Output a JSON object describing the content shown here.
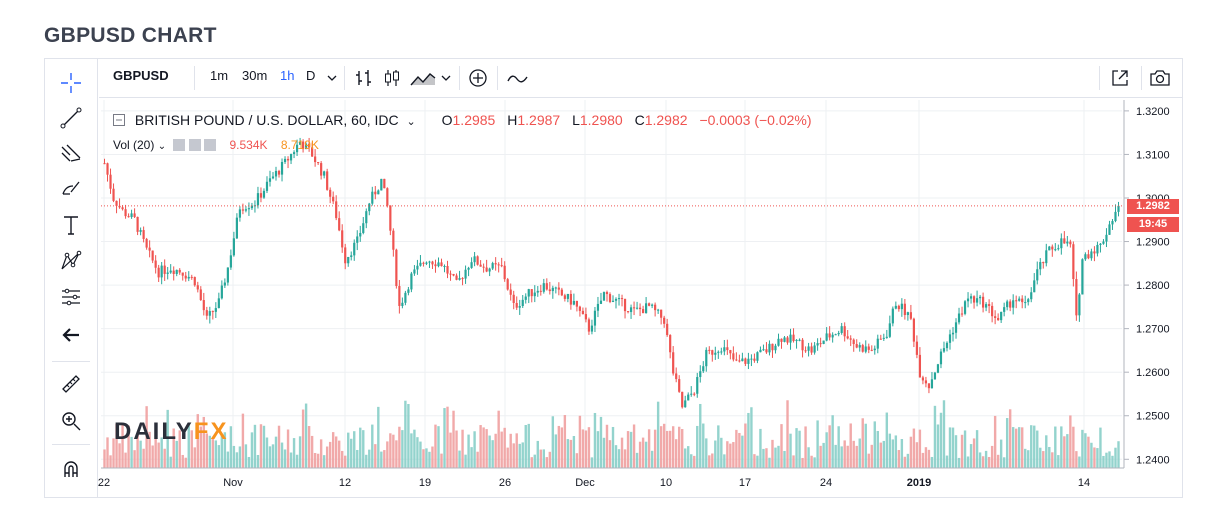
{
  "page_title": "GBPUSD CHART",
  "toolbar": {
    "symbol": "GBPUSD",
    "intervals": [
      "1m",
      "30m",
      "1h",
      "D"
    ],
    "active_interval": "1h",
    "icons": [
      "bars-icon",
      "candles-icon",
      "area-icon",
      "add-indicator-icon",
      "compare-icon",
      "popout-icon",
      "snapshot-icon"
    ]
  },
  "legend": {
    "instrument": "BRITISH POUND / U.S. DOLLAR, 60, IDC",
    "o_label": "O",
    "o_value": "1.2985",
    "h_label": "H",
    "h_value": "1.2987",
    "l_label": "L",
    "l_value": "1.2980",
    "c_label": "C",
    "c_value": "1.2982",
    "change": "−0.0003 (−0.02%)"
  },
  "volume_legend": {
    "label": "Vol (20)",
    "value1": "9.534K",
    "value2": "8.719K"
  },
  "price_tag": {
    "price": "1.2982",
    "countdown": "19:45"
  },
  "logo": {
    "part1": "DAILY",
    "part2": "FX"
  },
  "colors": {
    "up": "#26a69a",
    "down": "#ef5350",
    "vol_up": "#80cbc4",
    "vol_down": "#ef9a9a",
    "grid": "#eef0f3",
    "accent": "#2962ff"
  },
  "chart_data": {
    "type": "candlestick",
    "ylim": [
      1.238,
      1.3225
    ],
    "y_ticks": [
      "1.3200",
      "1.3100",
      "1.3000",
      "1.2900",
      "1.2800",
      "1.2700",
      "1.2600",
      "1.2500",
      "1.2400"
    ],
    "x_ticks": [
      "22",
      "Nov",
      "12",
      "19",
      "26",
      "Dec",
      "10",
      "17",
      "24",
      "2019",
      "14"
    ],
    "last_price": 1.2982,
    "price_path": [
      [
        0,
        1.308
      ],
      [
        3,
        1.3
      ],
      [
        6,
        1.297
      ],
      [
        10,
        1.295
      ],
      [
        14,
        1.288
      ],
      [
        18,
        1.283
      ],
      [
        22,
        1.284
      ],
      [
        26,
        1.283
      ],
      [
        30,
        1.281
      ],
      [
        34,
        1.272
      ],
      [
        38,
        1.276
      ],
      [
        41,
        1.284
      ],
      [
        45,
        1.298
      ],
      [
        50,
        1.299
      ],
      [
        55,
        1.304
      ],
      [
        60,
        1.308
      ],
      [
        65,
        1.313
      ],
      [
        69,
        1.31
      ],
      [
        73,
        1.305
      ],
      [
        77,
        1.296
      ],
      [
        80,
        1.286
      ],
      [
        84,
        1.29
      ],
      [
        88,
        1.299
      ],
      [
        92,
        1.304
      ],
      [
        94,
        1.298
      ],
      [
        96,
        1.287
      ],
      [
        98,
        1.275
      ],
      [
        102,
        1.282
      ],
      [
        107,
        1.286
      ],
      [
        112,
        1.285
      ],
      [
        117,
        1.28
      ],
      [
        122,
        1.286
      ],
      [
        127,
        1.284
      ],
      [
        132,
        1.284
      ],
      [
        136,
        1.275
      ],
      [
        141,
        1.278
      ],
      [
        146,
        1.28
      ],
      [
        151,
        1.278
      ],
      [
        156,
        1.276
      ],
      [
        161,
        1.27
      ],
      [
        166,
        1.278
      ],
      [
        171,
        1.276
      ],
      [
        176,
        1.274
      ],
      [
        181,
        1.275
      ],
      [
        186,
        1.272
      ],
      [
        189,
        1.26
      ],
      [
        192,
        1.252
      ],
      [
        196,
        1.256
      ],
      [
        200,
        1.264
      ],
      [
        205,
        1.266
      ],
      [
        210,
        1.262
      ],
      [
        215,
        1.263
      ],
      [
        220,
        1.265
      ],
      [
        225,
        1.268
      ],
      [
        230,
        1.267
      ],
      [
        235,
        1.265
      ],
      [
        240,
        1.268
      ],
      [
        245,
        1.27
      ],
      [
        250,
        1.266
      ],
      [
        255,
        1.265
      ],
      [
        260,
        1.269
      ],
      [
        263,
        1.276
      ],
      [
        266,
        1.274
      ],
      [
        268,
        1.272
      ],
      [
        271,
        1.26
      ],
      [
        274,
        1.257
      ],
      [
        278,
        1.264
      ],
      [
        282,
        1.27
      ],
      [
        287,
        1.277
      ],
      [
        292,
        1.276
      ],
      [
        297,
        1.272
      ],
      [
        302,
        1.277
      ],
      [
        306,
        1.275
      ],
      [
        310,
        1.283
      ],
      [
        314,
        1.288
      ],
      [
        318,
        1.29
      ],
      [
        321,
        1.289
      ],
      [
        323,
        1.272
      ],
      [
        325,
        1.286
      ],
      [
        328,
        1.288
      ],
      [
        331,
        1.289
      ],
      [
        334,
        1.294
      ],
      [
        337,
        1.2982
      ]
    ]
  }
}
